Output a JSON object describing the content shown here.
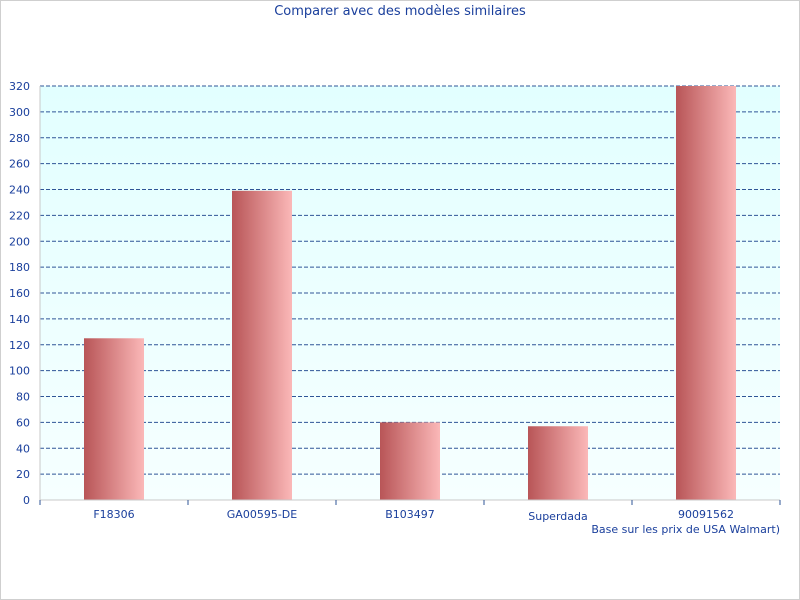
{
  "chart_data": {
    "type": "bar",
    "title": "Comparer avec des modèles similaires",
    "categories": [
      "F18306",
      "GA00595-DE",
      "B103497",
      "Superdada",
      "90091562"
    ],
    "values": [
      125,
      239,
      60,
      57,
      320
    ],
    "ylim": [
      0,
      320
    ],
    "y_ticks": [
      0,
      20,
      40,
      60,
      80,
      100,
      120,
      140,
      160,
      180,
      200,
      220,
      240,
      260,
      280,
      300,
      320
    ],
    "xlabel": "",
    "ylabel": "",
    "note": "Base sur les prix de USA Walmart)",
    "grid": true,
    "legend": "none",
    "colors": {
      "bar_dark": "#b85557",
      "bar_light": "#fbb8b8",
      "plot_background": "#e6ffff",
      "grid_line": "#2f5597",
      "axis_text": "#1a3f9c"
    }
  }
}
